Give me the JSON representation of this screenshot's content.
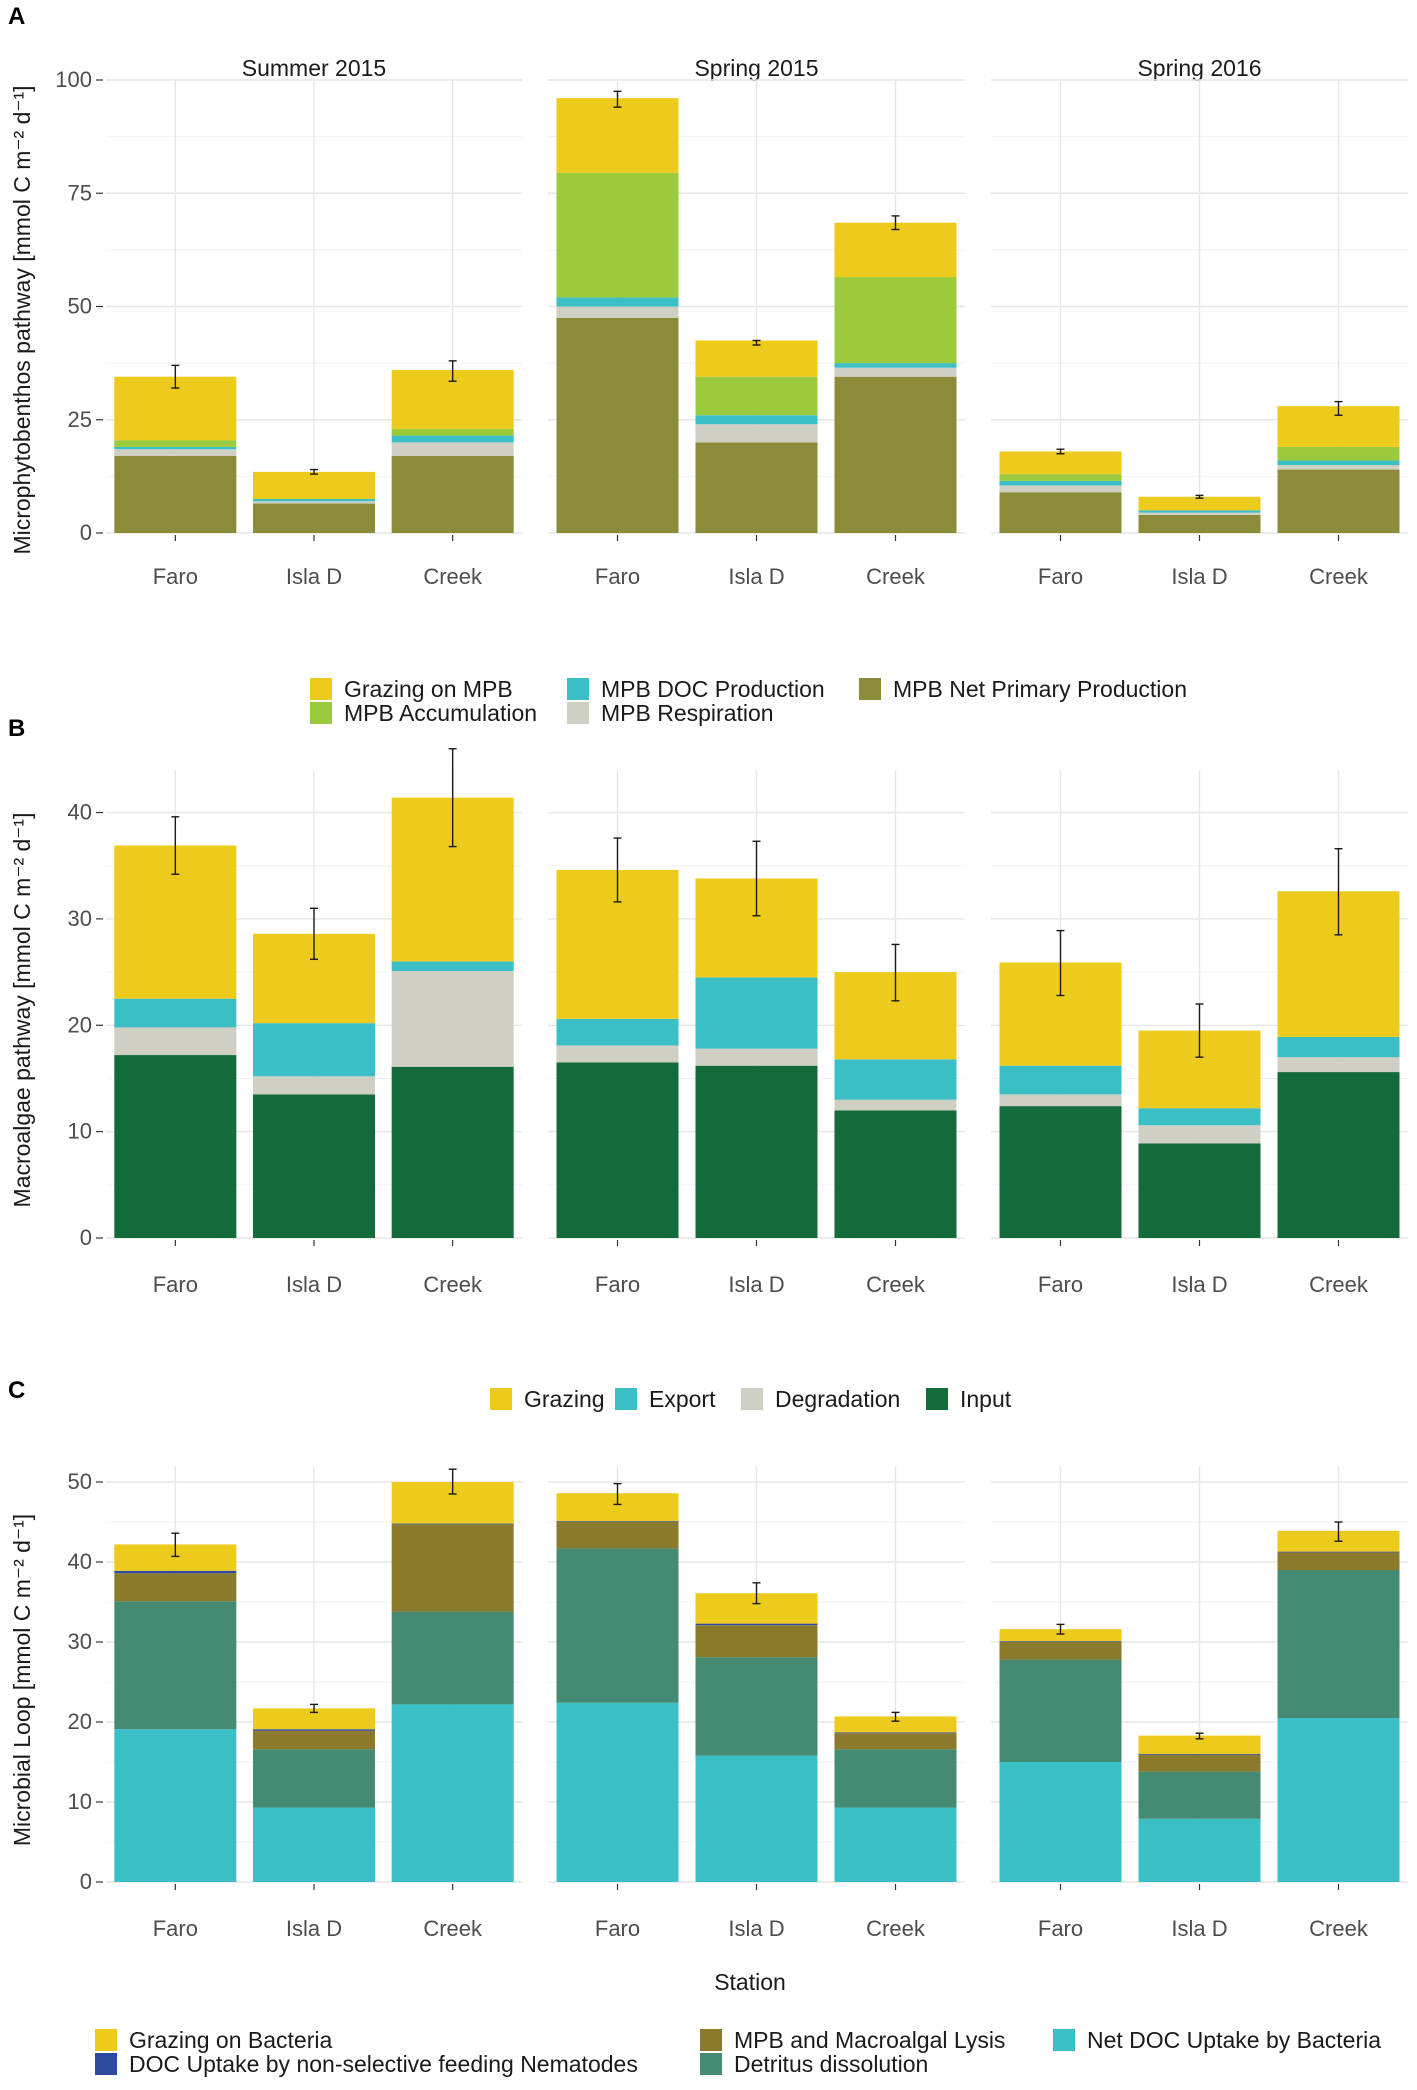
{
  "chart_data": [
    {
      "panel": "A",
      "type": "bar",
      "stacked": true,
      "ylabel": "Microphytobenthos pathway [mmol C m⁻² d⁻¹]",
      "ylim": [
        0,
        100
      ],
      "yticks": [
        0,
        25,
        50,
        75,
        100
      ],
      "facets": [
        "Summer 2015",
        "Spring 2015",
        "Spring 2016"
      ],
      "categories": [
        "Faro",
        "Isla D",
        "Creek"
      ],
      "series": [
        {
          "name": "MPB Net Primary Production",
          "color": "#8B8B3A",
          "values": [
            [
              17,
              6.5,
              17
            ],
            [
              47.5,
              20,
              34.5
            ],
            [
              9,
              4,
              14
            ]
          ]
        },
        {
          "name": "MPB Respiration",
          "color": "#CFCFC4",
          "values": [
            [
              1.5,
              0.5,
              3
            ],
            [
              2.5,
              4,
              2
            ],
            [
              1.5,
              0.5,
              1
            ]
          ]
        },
        {
          "name": "MPB DOC Production",
          "color": "#3BBFC6",
          "values": [
            [
              0.5,
              0.5,
              1.5
            ],
            [
              2,
              2,
              1
            ],
            [
              1,
              0.5,
              1
            ]
          ]
        },
        {
          "name": "MPB Accumulation",
          "color": "#9BCB3C",
          "values": [
            [
              1.5,
              0,
              1.5
            ],
            [
              27.5,
              8.5,
              19
            ],
            [
              1.5,
              0,
              3
            ]
          ]
        },
        {
          "name": "Grazing on MPB",
          "color": "#EDCB1C",
          "values": [
            [
              14,
              6,
              13
            ],
            [
              16.5,
              8,
              12
            ],
            [
              5,
              3,
              9
            ]
          ]
        }
      ],
      "errorbars": [
        {
          "facet": "Summer 2015",
          "category": "Faro",
          "series": "Grazing on MPB",
          "value": 34.5,
          "low": 32,
          "high": 37
        },
        {
          "facet": "Summer 2015",
          "category": "Isla D",
          "series": "Grazing on MPB",
          "value": 13.5,
          "low": 13,
          "high": 14
        },
        {
          "facet": "Summer 2015",
          "category": "Creek",
          "series": "Grazing on MPB",
          "value": 35.5,
          "low": 33.5,
          "high": 38
        },
        {
          "facet": "Spring 2015",
          "category": "Faro",
          "series": "Grazing on MPB",
          "value": 95.5,
          "low": 94,
          "high": 97.5
        },
        {
          "facet": "Spring 2015",
          "category": "Isla D",
          "series": "Grazing on MPB",
          "value": 42,
          "low": 41.5,
          "high": 42.5
        },
        {
          "facet": "Spring 2015",
          "category": "Creek",
          "series": "Grazing on MPB",
          "value": 68.5,
          "low": 67,
          "high": 70
        },
        {
          "facet": "Spring 2016",
          "category": "Faro",
          "series": "Grazing on MPB",
          "value": 18,
          "low": 17.5,
          "high": 18.5
        },
        {
          "facet": "Spring 2016",
          "category": "Isla D",
          "series": "Grazing on MPB",
          "value": 8,
          "low": 7.7,
          "high": 8.3
        },
        {
          "facet": "Spring 2016",
          "category": "Creek",
          "series": "Grazing on MPB",
          "value": 27.5,
          "low": 26,
          "high": 29
        }
      ],
      "legend": {
        "position": "bottom",
        "entries": [
          "Grazing on MPB",
          "MPB DOC Production",
          "MPB Net Primary Production",
          "MPB Accumulation",
          "MPB Respiration"
        ]
      }
    },
    {
      "panel": "B",
      "type": "bar",
      "stacked": true,
      "ylabel": "Macroalgae pathway [mmol C m⁻² d⁻¹]",
      "ylim": [
        0,
        44
      ],
      "yticks": [
        0,
        10,
        20,
        30,
        40
      ],
      "facets": [
        "Summer 2015",
        "Spring 2015",
        "Spring 2016"
      ],
      "categories": [
        "Faro",
        "Isla D",
        "Creek"
      ],
      "series": [
        {
          "name": "Input",
          "color": "#146B3A",
          "values": [
            [
              17.2,
              13.5,
              16.1
            ],
            [
              16.5,
              16.2,
              12
            ],
            [
              12.4,
              8.9,
              15.6
            ]
          ]
        },
        {
          "name": "Degradation",
          "color": "#CFCFC4",
          "values": [
            [
              2.6,
              1.7,
              9
            ],
            [
              1.6,
              1.6,
              1
            ],
            [
              1.1,
              1.7,
              1.4
            ]
          ]
        },
        {
          "name": "Export",
          "color": "#3BBFC6",
          "values": [
            [
              2.7,
              5,
              0.9
            ],
            [
              2.5,
              6.7,
              3.8
            ],
            [
              2.7,
              1.6,
              1.9
            ]
          ]
        },
        {
          "name": "Grazing",
          "color": "#EDCB1C",
          "values": [
            [
              14.4,
              8.4,
              15.4
            ],
            [
              14,
              9.3,
              8.2
            ],
            [
              9.7,
              7.3,
              13.7
            ]
          ]
        }
      ],
      "errorbars": [
        {
          "facet": "Summer 2015",
          "category": "Faro",
          "series": "Grazing",
          "value": 36.9,
          "low": 34.2,
          "high": 39.6
        },
        {
          "facet": "Summer 2015",
          "category": "Isla D",
          "series": "Grazing",
          "value": 28.6,
          "low": 26.2,
          "high": 31
        },
        {
          "facet": "Summer 2015",
          "category": "Creek",
          "series": "Grazing",
          "value": 41.4,
          "low": 36.8,
          "high": 46
        },
        {
          "facet": "Spring 2015",
          "category": "Faro",
          "series": "Grazing",
          "value": 34.6,
          "low": 31.6,
          "high": 37.6
        },
        {
          "facet": "Spring 2015",
          "category": "Isla D",
          "series": "Grazing",
          "value": 33.8,
          "low": 30.3,
          "high": 37.3
        },
        {
          "facet": "Spring 2015",
          "category": "Creek",
          "series": "Grazing",
          "value": 25,
          "low": 22.3,
          "high": 27.6
        },
        {
          "facet": "Spring 2016",
          "category": "Faro",
          "series": "Grazing",
          "value": 25.9,
          "low": 22.8,
          "high": 28.9
        },
        {
          "facet": "Spring 2016",
          "category": "Isla D",
          "series": "Grazing",
          "value": 19.5,
          "low": 17,
          "high": 22
        },
        {
          "facet": "Spring 2016",
          "category": "Creek",
          "series": "Grazing",
          "value": 32.6,
          "low": 28.5,
          "high": 36.6
        }
      ],
      "legend": {
        "position": "bottom",
        "entries": [
          "Grazing",
          "Export",
          "Degradation",
          "Input"
        ]
      }
    },
    {
      "panel": "C",
      "type": "bar",
      "stacked": true,
      "xlabel": "Station",
      "ylabel": "Microbial Loop [mmol C m⁻² d⁻¹]",
      "ylim": [
        0,
        52
      ],
      "yticks": [
        0,
        10,
        20,
        30,
        40,
        50
      ],
      "facets": [
        "Summer 2015",
        "Spring 2015",
        "Spring 2016"
      ],
      "categories": [
        "Faro",
        "Isla D",
        "Creek"
      ],
      "series": [
        {
          "name": "Net DOC Uptake by Bacteria",
          "color": "#3BBFC6",
          "values": [
            [
              19.1,
              9.3,
              22.2
            ],
            [
              22.4,
              15.8,
              9.3
            ],
            [
              15,
              7.9,
              20.5
            ]
          ]
        },
        {
          "name": "Detritus dissolution",
          "color": "#458B73",
          "values": [
            [
              16,
              7.3,
              11.6
            ],
            [
              19.3,
              12.3,
              7.3
            ],
            [
              12.8,
              5.9,
              18.5
            ]
          ]
        },
        {
          "name": "MPB and Macroalgal Lysis",
          "color": "#8B7A2B",
          "values": [
            [
              3.5,
              2.3,
              10.9
            ],
            [
              3.3,
              4,
              2
            ],
            [
              2.2,
              2.1,
              2.2
            ]
          ]
        },
        {
          "name": "DOC Uptake by non-selective feeding Nematodes",
          "color": "#2E4A9E",
          "values": [
            [
              0.3,
              0.2,
              0.1
            ],
            [
              0.1,
              0.2,
              0.1
            ],
            [
              0.1,
              0.1,
              0.1
            ]
          ]
        },
        {
          "name": "Grazing on Bacteria",
          "color": "#EDCB1C",
          "values": [
            [
              3.3,
              2.6,
              5.2
            ],
            [
              3.5,
              3.8,
              2
            ],
            [
              1.5,
              2.3,
              2.6
            ]
          ]
        }
      ],
      "errorbars": [
        {
          "facet": "Summer 2015",
          "category": "Faro",
          "series": "Grazing on Bacteria",
          "value": 42.2,
          "low": 40.7,
          "high": 43.6
        },
        {
          "facet": "Summer 2015",
          "category": "Isla D",
          "series": "Grazing on Bacteria",
          "value": 21.7,
          "low": 21.2,
          "high": 22.2
        },
        {
          "facet": "Summer 2015",
          "category": "Creek",
          "series": "Grazing on Bacteria",
          "value": 50,
          "low": 48.5,
          "high": 51.6
        },
        {
          "facet": "Spring 2015",
          "category": "Faro",
          "series": "Grazing on Bacteria",
          "value": 48.6,
          "low": 47.2,
          "high": 49.8
        },
        {
          "facet": "Spring 2015",
          "category": "Isla D",
          "series": "Grazing on Bacteria",
          "value": 36.1,
          "low": 34.8,
          "high": 37.4
        },
        {
          "facet": "Spring 2015",
          "category": "Creek",
          "series": "Grazing on Bacteria",
          "value": 20.7,
          "low": 20.1,
          "high": 21.2
        },
        {
          "facet": "Spring 2016",
          "category": "Faro",
          "series": "Grazing on Bacteria",
          "value": 31.6,
          "low": 31,
          "high": 32.2
        },
        {
          "facet": "Spring 2016",
          "category": "Isla D",
          "series": "Grazing on Bacteria",
          "value": 18.3,
          "low": 17.9,
          "high": 18.6
        },
        {
          "facet": "Spring 2016",
          "category": "Creek",
          "series": "Grazing on Bacteria",
          "value": 43.9,
          "low": 42.6,
          "high": 45
        }
      ],
      "legend": {
        "position": "bottom",
        "entries": [
          "Grazing on Bacteria",
          "MPB and Macroalgal Lysis",
          "Net DOC Uptake by Bacteria",
          "DOC Uptake by non-selective feeding Nematodes",
          "Detritus dissolution"
        ]
      }
    }
  ]
}
